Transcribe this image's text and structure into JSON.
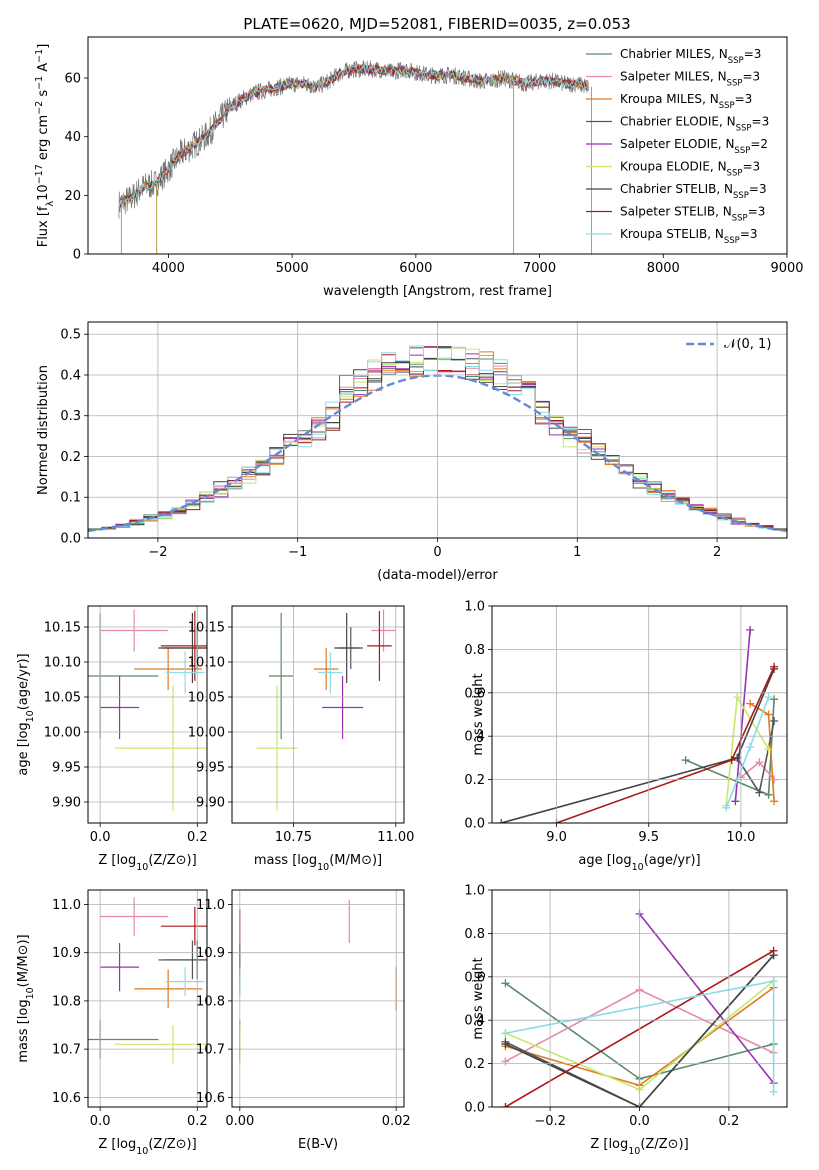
{
  "figure": {
    "title": "PLATE=0620, MJD=52081, FIBERID=0035, z=0.053"
  },
  "models": [
    {
      "name": "Chabrier MILES",
      "nssp": "3",
      "color": "#5a8a6a"
    },
    {
      "name": "Salpeter MILES",
      "nssp": "3",
      "color": "#e88aaa"
    },
    {
      "name": "Kroupa MILES",
      "nssp": "3",
      "color": "#e07a20"
    },
    {
      "name": "Chabrier ELODIE",
      "nssp": "3",
      "color": "#555555"
    },
    {
      "name": "Salpeter ELODIE",
      "nssp": "2",
      "color": "#9a30b0"
    },
    {
      "name": "Kroupa ELODIE",
      "nssp": "3",
      "color": "#c8e86a"
    },
    {
      "name": "Chabrier STELIB",
      "nssp": "3",
      "color": "#444444"
    },
    {
      "name": "Salpeter STELIB",
      "nssp": "3",
      "color": "#aa1818"
    },
    {
      "name": "Kroupa STELIB",
      "nssp": "3",
      "color": "#88dde8"
    }
  ],
  "chart_data": [
    {
      "id": "spectrum",
      "type": "line",
      "xlabel": "wavelength [Angstrom, rest frame]",
      "ylabel_parts": [
        "Flux [f",
        "λ",
        "10",
        "−17",
        " erg cm",
        "−2",
        " s",
        "−1",
        " A",
        "−1",
        "]"
      ],
      "legend_prefix": "N",
      "legend_sub": "SSP",
      "xlim": [
        3350,
        9000
      ],
      "ylim": [
        0,
        74
      ],
      "xticks": [
        4000,
        5000,
        6000,
        7000,
        8000,
        9000
      ],
      "yticks": [
        0,
        20,
        40,
        60
      ],
      "legend": "right",
      "grid": false,
      "continuum": [
        [
          3600,
          17
        ],
        [
          3700,
          19
        ],
        [
          3800,
          23
        ],
        [
          3900,
          24
        ],
        [
          4000,
          29
        ],
        [
          4100,
          34
        ],
        [
          4200,
          37
        ],
        [
          4300,
          40
        ],
        [
          4400,
          45
        ],
        [
          4500,
          50
        ],
        [
          4600,
          53
        ],
        [
          4700,
          55
        ],
        [
          4800,
          56
        ],
        [
          4900,
          57
        ],
        [
          5000,
          58
        ],
        [
          5100,
          58
        ],
        [
          5200,
          57
        ],
        [
          5300,
          59
        ],
        [
          5400,
          62
        ],
        [
          5500,
          63
        ],
        [
          5600,
          63
        ],
        [
          5700,
          63
        ],
        [
          5800,
          62
        ],
        [
          5900,
          63
        ],
        [
          6000,
          62
        ],
        [
          6100,
          61
        ],
        [
          6200,
          61
        ],
        [
          6300,
          61
        ],
        [
          6400,
          60
        ],
        [
          6500,
          59
        ],
        [
          6600,
          59
        ],
        [
          6700,
          60
        ],
        [
          6800,
          59
        ],
        [
          6900,
          58
        ],
        [
          7000,
          59
        ],
        [
          7100,
          59
        ],
        [
          7200,
          58
        ],
        [
          7300,
          58
        ],
        [
          7400,
          57
        ]
      ],
      "spikes_down": [
        [
          3620,
          0
        ],
        [
          3905,
          0
        ],
        [
          6790,
          0
        ],
        [
          7420,
          0
        ]
      ]
    },
    {
      "id": "residuals",
      "type": "histogram",
      "xlabel": "(data-model)/error",
      "ylabel": "Normed distribution",
      "xlim": [
        -2.5,
        2.5
      ],
      "ylim": [
        0,
        0.53
      ],
      "xticks": [
        -2,
        -1,
        0,
        1,
        2
      ],
      "yticks": [
        0.0,
        0.1,
        0.2,
        0.3,
        0.4,
        0.5
      ],
      "grid": true,
      "legend": "top-right",
      "gauss_label": "𝒩(0, 1)",
      "gauss_color": "#6688d8",
      "bin_width": 0.1
    },
    {
      "id": "age-vs-Z",
      "type": "errorbar",
      "xlabel": "Z [log10(Z/Z⊙)]",
      "ylabel": "age  [log10(age/yr)]",
      "xlim": [
        -0.025,
        0.22
      ],
      "ylim": [
        9.87,
        10.18
      ],
      "xticks": [
        0.0,
        0.2
      ],
      "yticks": [
        9.9,
        9.95,
        10.0,
        10.05,
        10.1,
        10.15
      ],
      "grid": true,
      "points": [
        {
          "model": 0,
          "x": 0.0,
          "y": 10.08,
          "xerr": 0.12,
          "yerr": 0.09
        },
        {
          "model": 1,
          "x": 0.07,
          "y": 10.145,
          "xerr": 0.07,
          "yerr": 0.03
        },
        {
          "model": 2,
          "x": 0.14,
          "y": 10.09,
          "xerr": 0.07,
          "yerr": 0.03
        },
        {
          "model": 3,
          "x": 0.2,
          "y": 10.12,
          "xerr": 0.07,
          "yerr": 0.03
        },
        {
          "model": 4,
          "x": 0.04,
          "y": 10.035,
          "xerr": 0.04,
          "yerr": 0.045
        },
        {
          "model": 5,
          "x": 0.15,
          "y": 9.977,
          "xerr": 0.12,
          "yerr": 0.09
        },
        {
          "model": 6,
          "x": 0.19,
          "y": 10.12,
          "xerr": 0.07,
          "yerr": 0.05
        },
        {
          "model": 7,
          "x": 0.195,
          "y": 10.123,
          "xerr": 0.07,
          "yerr": 0.05
        },
        {
          "model": 8,
          "x": 0.175,
          "y": 10.085,
          "xerr": 0.04,
          "yerr": 0.03
        }
      ]
    },
    {
      "id": "age-vs-mass",
      "type": "errorbar",
      "xlabel": "mass [log10(M/M⊙)]",
      "ylabel": "",
      "xlim": [
        10.6,
        11.02
      ],
      "ylim": [
        9.87,
        10.18
      ],
      "xticks": [
        10.75,
        11.0
      ],
      "yticks": [
        9.9,
        9.95,
        10.0,
        10.05,
        10.1,
        10.15
      ],
      "grid": true,
      "points": [
        {
          "model": 0,
          "x": 10.72,
          "y": 10.08,
          "xerr": 0.03,
          "yerr": 0.09
        },
        {
          "model": 1,
          "x": 10.97,
          "y": 10.145,
          "xerr": 0.03,
          "yerr": 0.03
        },
        {
          "model": 2,
          "x": 10.83,
          "y": 10.09,
          "xerr": 0.03,
          "yerr": 0.03
        },
        {
          "model": 3,
          "x": 10.89,
          "y": 10.12,
          "xerr": 0.03,
          "yerr": 0.03
        },
        {
          "model": 4,
          "x": 10.87,
          "y": 10.035,
          "xerr": 0.05,
          "yerr": 0.045
        },
        {
          "model": 5,
          "x": 10.71,
          "y": 9.977,
          "xerr": 0.05,
          "yerr": 0.09
        },
        {
          "model": 6,
          "x": 10.88,
          "y": 10.12,
          "xerr": 0.03,
          "yerr": 0.05
        },
        {
          "model": 7,
          "x": 10.96,
          "y": 10.123,
          "xerr": 0.03,
          "yerr": 0.05
        },
        {
          "model": 8,
          "x": 10.84,
          "y": 10.085,
          "xerr": 0.03,
          "yerr": 0.03
        }
      ]
    },
    {
      "id": "mass-weight-vs-age",
      "type": "line",
      "xlabel": "age  [log10(age/yr)]",
      "ylabel": "mass weight",
      "xlim": [
        8.65,
        10.25
      ],
      "ylim": [
        0,
        1.0
      ],
      "xticks": [
        9.0,
        9.5,
        10.0
      ],
      "yticks": [
        0.0,
        0.2,
        0.4,
        0.6,
        0.8,
        1.0
      ],
      "grid": true,
      "series": [
        {
          "model": 0,
          "points": [
            [
              9.7,
              0.29
            ],
            [
              10.15,
              0.13
            ],
            [
              10.18,
              0.57
            ]
          ]
        },
        {
          "model": 1,
          "points": [
            [
              10.0,
              0.21
            ],
            [
              10.1,
              0.28
            ],
            [
              10.18,
              0.2
            ]
          ]
        },
        {
          "model": 2,
          "points": [
            [
              10.05,
              0.55
            ],
            [
              10.15,
              0.5
            ],
            [
              10.18,
              0.1
            ]
          ]
        },
        {
          "model": 3,
          "points": [
            [
              9.98,
              0.3
            ],
            [
              10.1,
              0.14
            ],
            [
              10.18,
              0.47
            ]
          ]
        },
        {
          "model": 4,
          "points": [
            [
              9.97,
              0.1
            ],
            [
              10.05,
              0.89
            ]
          ]
        },
        {
          "model": 5,
          "points": [
            [
              9.92,
              0.08
            ],
            [
              9.98,
              0.58
            ],
            [
              10.15,
              0.34
            ]
          ]
        },
        {
          "model": 6,
          "points": [
            [
              8.7,
              0.0
            ],
            [
              9.98,
              0.3
            ],
            [
              10.18,
              0.71
            ]
          ]
        },
        {
          "model": 7,
          "points": [
            [
              9.0,
              0.0
            ],
            [
              9.95,
              0.29
            ],
            [
              10.18,
              0.72
            ]
          ]
        },
        {
          "model": 8,
          "points": [
            [
              9.92,
              0.07
            ],
            [
              10.05,
              0.35
            ],
            [
              10.15,
              0.58
            ]
          ]
        }
      ]
    },
    {
      "id": "mass-vs-Z",
      "type": "errorbar",
      "xlabel": "Z [log10(Z/Z⊙)]",
      "ylabel": "mass [log10(M/M⊙)]",
      "xlim": [
        -0.025,
        0.22
      ],
      "ylim": [
        10.58,
        11.03
      ],
      "xticks": [
        0.0,
        0.2
      ],
      "yticks": [
        10.6,
        10.7,
        10.8,
        10.9,
        11.0
      ],
      "grid": true,
      "points": [
        {
          "model": 0,
          "x": 0.0,
          "y": 10.72,
          "xerr": 0.12,
          "yerr": 0.04
        },
        {
          "model": 1,
          "x": 0.07,
          "y": 10.975,
          "xerr": 0.07,
          "yerr": 0.04
        },
        {
          "model": 2,
          "x": 0.14,
          "y": 10.825,
          "xerr": 0.07,
          "yerr": 0.04
        },
        {
          "model": 3,
          "x": 0.19,
          "y": 10.885,
          "xerr": 0.07,
          "yerr": 0.04
        },
        {
          "model": 4,
          "x": 0.04,
          "y": 10.87,
          "xerr": 0.04,
          "yerr": 0.05
        },
        {
          "model": 5,
          "x": 0.15,
          "y": 10.71,
          "xerr": 0.12,
          "yerr": 0.04
        },
        {
          "model": 6,
          "x": 0.2,
          "y": 10.885,
          "xerr": 0.07,
          "yerr": 0.04
        },
        {
          "model": 7,
          "x": 0.195,
          "y": 10.955,
          "xerr": 0.07,
          "yerr": 0.04
        },
        {
          "model": 8,
          "x": 0.175,
          "y": 10.84,
          "xerr": 0.04,
          "yerr": 0.03
        }
      ]
    },
    {
      "id": "mass-vs-ebv",
      "type": "errorbar",
      "xlabel": "E(B-V)",
      "ylabel": "",
      "xlim": [
        -0.001,
        0.021
      ],
      "ylim": [
        10.58,
        11.03
      ],
      "xticks": [
        0.0,
        0.02
      ],
      "yticks": [
        10.6,
        10.7,
        10.8,
        10.9,
        11.0
      ],
      "grid": true,
      "points": [
        {
          "model": 0,
          "x": 0.0,
          "y": 10.72,
          "xerr": 0.0,
          "yerr": 0.04
        },
        {
          "model": 1,
          "x": 0.014,
          "y": 10.965,
          "xerr": 0.0,
          "yerr": 0.045
        },
        {
          "model": 2,
          "x": 0.02,
          "y": 10.825,
          "xerr": 0.0,
          "yerr": 0.045
        },
        {
          "model": 3,
          "x": 0.0,
          "y": 10.885,
          "xerr": 0.0,
          "yerr": 0.03
        },
        {
          "model": 4,
          "x": 0.0,
          "y": 10.87,
          "xerr": 0.0,
          "yerr": 0.05
        },
        {
          "model": 5,
          "x": 0.0,
          "y": 10.71,
          "xerr": 0.0,
          "yerr": 0.04
        },
        {
          "model": 6,
          "x": 0.0,
          "y": 10.885,
          "xerr": 0.0,
          "yerr": 0.03
        },
        {
          "model": 7,
          "x": 0.0,
          "y": 10.95,
          "xerr": 0.0,
          "yerr": 0.04
        },
        {
          "model": 8,
          "x": 0.0,
          "y": 10.84,
          "xerr": 0.0,
          "yerr": 0.03
        }
      ]
    },
    {
      "id": "mass-weight-vs-Z",
      "type": "line",
      "xlabel": "Z [log10(Z/Z⊙)]",
      "ylabel": "mass weight",
      "xlim": [
        -0.33,
        0.33
      ],
      "ylim": [
        0,
        1.0
      ],
      "xticks": [
        -0.2,
        0.0,
        0.2
      ],
      "yticks": [
        0.0,
        0.2,
        0.4,
        0.6,
        0.8,
        1.0
      ],
      "grid": true,
      "series": [
        {
          "model": 0,
          "points": [
            [
              -0.3,
              0.57
            ],
            [
              0.0,
              0.13
            ],
            [
              0.3,
              0.29
            ]
          ]
        },
        {
          "model": 1,
          "points": [
            [
              -0.3,
              0.21
            ],
            [
              0.0,
              0.54
            ],
            [
              0.3,
              0.25
            ]
          ]
        },
        {
          "model": 2,
          "points": [
            [
              -0.3,
              0.28
            ],
            [
              0.0,
              0.1
            ],
            [
              0.3,
              0.55
            ]
          ]
        },
        {
          "model": 3,
          "points": [
            [
              -0.3,
              0.3
            ],
            [
              0.0,
              0.0
            ],
            [
              0.3,
              0.7
            ]
          ]
        },
        {
          "model": 4,
          "points": [
            [
              0.0,
              0.89
            ],
            [
              0.3,
              0.11
            ]
          ]
        },
        {
          "model": 5,
          "points": [
            [
              -0.3,
              0.34
            ],
            [
              0.0,
              0.08
            ],
            [
              0.3,
              0.58
            ]
          ]
        },
        {
          "model": 6,
          "points": [
            [
              -0.3,
              0.29
            ],
            [
              0.0,
              0.0
            ],
            [
              0.3,
              0.7
            ]
          ]
        },
        {
          "model": 7,
          "points": [
            [
              -0.3,
              0.0
            ],
            [
              0.3,
              0.72
            ]
          ]
        },
        {
          "model": 8,
          "points": [
            [
              -0.3,
              0.34
            ],
            [
              0.3,
              0.58
            ],
            [
              0.3,
              0.07
            ]
          ]
        }
      ]
    }
  ]
}
